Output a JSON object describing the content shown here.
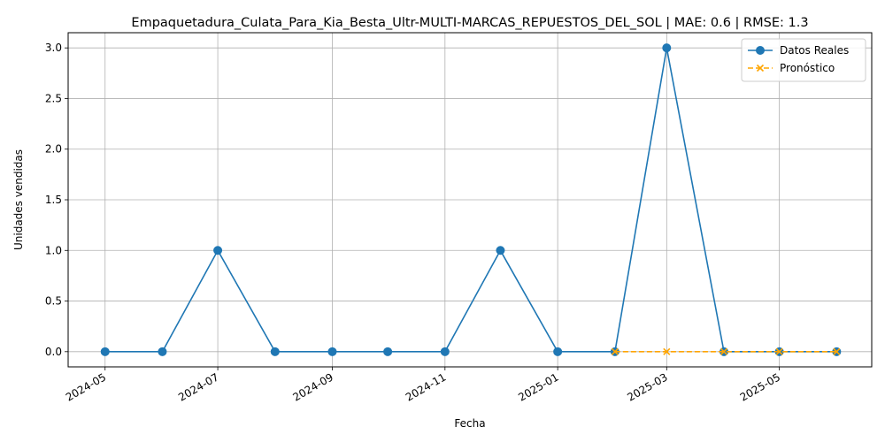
{
  "chart_data": {
    "type": "line",
    "title": "Empaquetadura_Culata_Para_Kia_Besta_Ultr-MULTI-MARCAS_REPUESTOS_DEL_SOL | MAE: 0.6 | RMSE: 1.3",
    "xlabel": "Fecha",
    "ylabel": "Unidades vendidas",
    "xlim": [
      "2024-04-11",
      "2025-06-20"
    ],
    "ylim": [
      -0.15,
      3.15
    ],
    "x_ticks": [
      "2024-05",
      "2024-07",
      "2024-09",
      "2024-11",
      "2025-01",
      "2025-03",
      "2025-05"
    ],
    "x_tick_dates": [
      "2024-05-01",
      "2024-07-01",
      "2024-09-01",
      "2024-11-01",
      "2025-01-01",
      "2025-03-01",
      "2025-05-01"
    ],
    "y_ticks": [
      "0.0",
      "0.5",
      "1.0",
      "1.5",
      "2.0",
      "2.5",
      "3.0"
    ],
    "y_tick_values": [
      0,
      0.5,
      1,
      1.5,
      2,
      2.5,
      3
    ],
    "grid": true,
    "legend_position": "top-right",
    "series": [
      {
        "name": "Datos Reales",
        "color": "#1f77b4",
        "style": "solid",
        "marker": "circle",
        "x": [
          "2024-05-01",
          "2024-06-01",
          "2024-07-01",
          "2024-08-01",
          "2024-09-01",
          "2024-10-01",
          "2024-11-01",
          "2024-12-01",
          "2025-01-01",
          "2025-02-01",
          "2025-03-01",
          "2025-04-01",
          "2025-05-01",
          "2025-06-01"
        ],
        "values": [
          0,
          0,
          1,
          0,
          0,
          0,
          0,
          1,
          0,
          0,
          3,
          0,
          0,
          0
        ]
      },
      {
        "name": "Pronóstico",
        "color": "#ffa500",
        "style": "dashed",
        "marker": "x",
        "x": [
          "2025-02-01",
          "2025-03-01",
          "2025-04-01",
          "2025-05-01",
          "2025-06-01"
        ],
        "values": [
          0,
          0,
          0,
          0,
          0
        ]
      }
    ]
  }
}
